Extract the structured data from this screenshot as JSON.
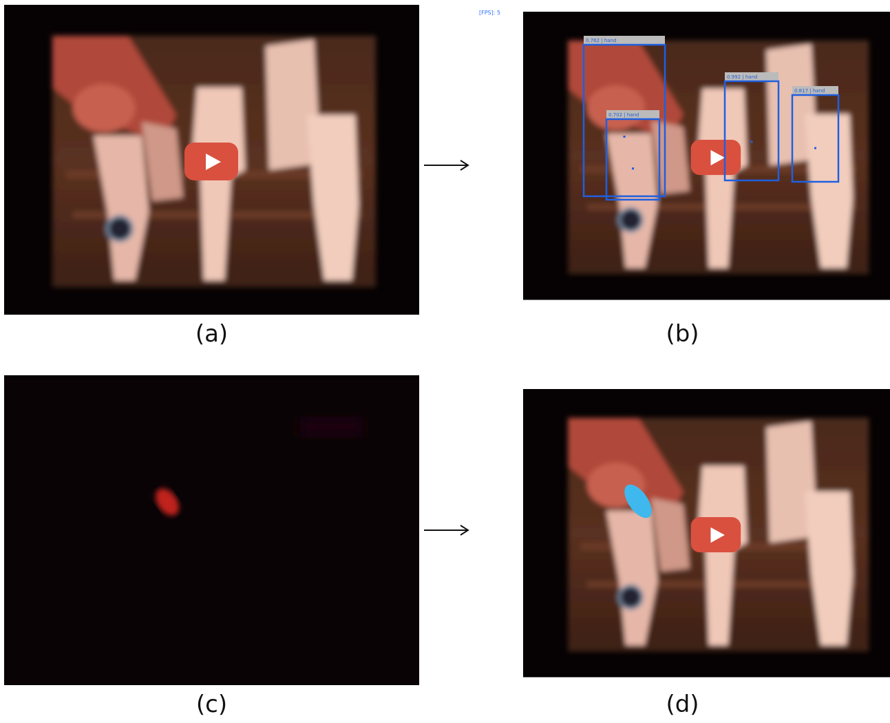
{
  "panels": [
    {
      "label": "(a)"
    },
    {
      "label": "(b)",
      "overlay": "[FPS]: 5",
      "detections": [
        "0.762 | hand",
        "0.702 | hand",
        "0.992 | hand",
        "0.817 | hand"
      ]
    },
    {
      "label": "(c)"
    },
    {
      "label": "(d)"
    }
  ]
}
